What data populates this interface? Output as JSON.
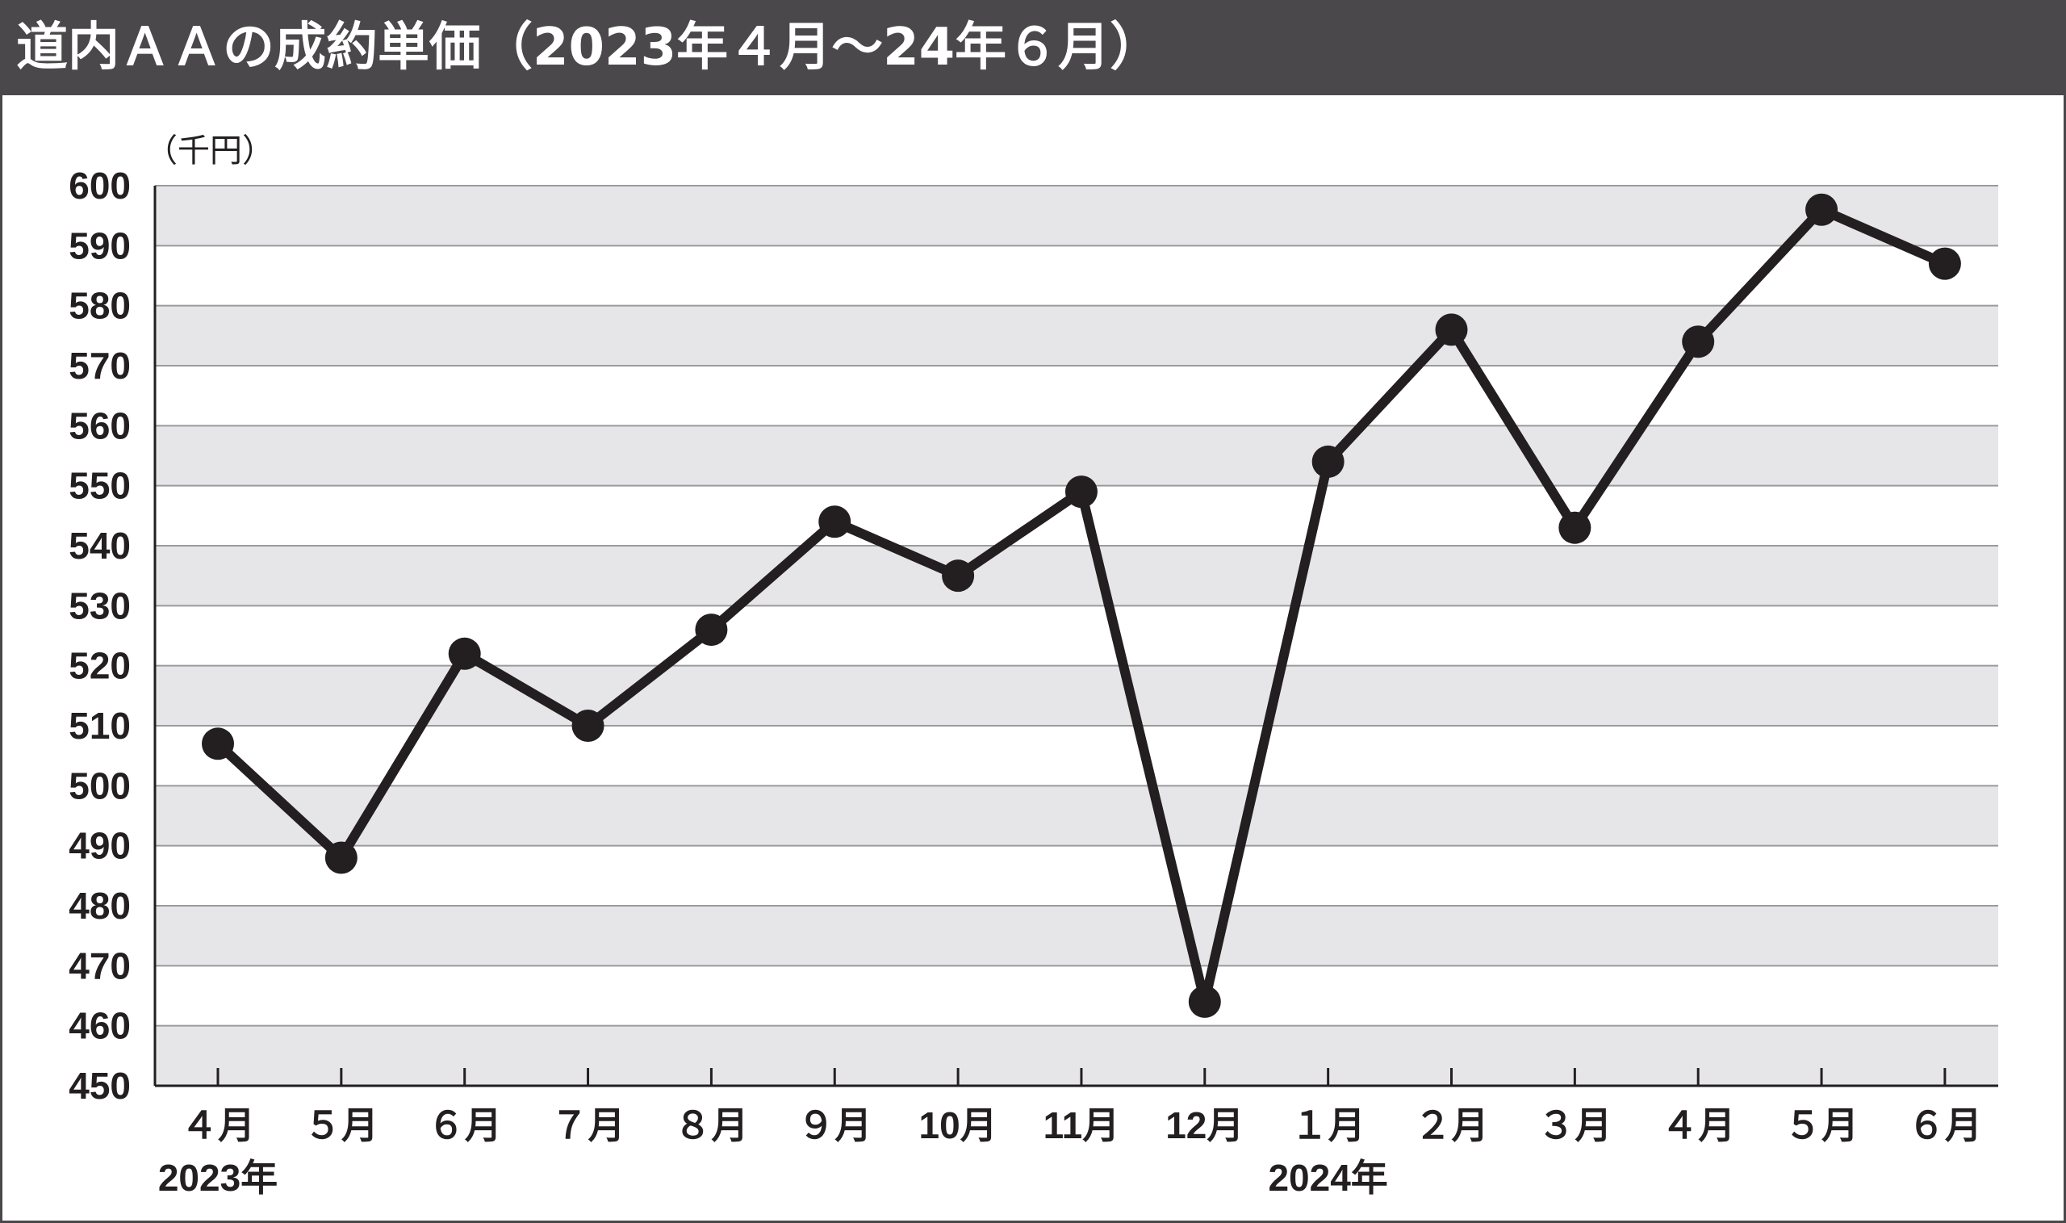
{
  "title": "道内ＡＡの成約単価（2023年４月～24年６月）",
  "chart_data": {
    "type": "line",
    "title": "道内ＡＡの成約単価（2023年４月～24年６月）",
    "ylabel": "（千円）",
    "xlabel": "",
    "ylim": [
      450,
      600
    ],
    "ytick_step": 10,
    "grid": true,
    "categories": [
      "４月",
      "５月",
      "６月",
      "７月",
      "８月",
      "９月",
      "10月",
      "11月",
      "12月",
      "１月",
      "２月",
      "３月",
      "４月",
      "５月",
      "６月"
    ],
    "year_labels": [
      {
        "index": 0,
        "label": "2023年"
      },
      {
        "index": 9,
        "label": "2024年"
      }
    ],
    "series": [
      {
        "values": [
          507,
          488,
          522,
          510,
          526,
          544,
          535,
          549,
          464,
          554,
          576,
          543,
          574,
          596,
          587
        ]
      }
    ],
    "colors": {
      "line": "#231f20",
      "band_shade": "#e6e6e8",
      "gridline": "#9a9a9c",
      "title_bg": "#4a484a"
    }
  }
}
